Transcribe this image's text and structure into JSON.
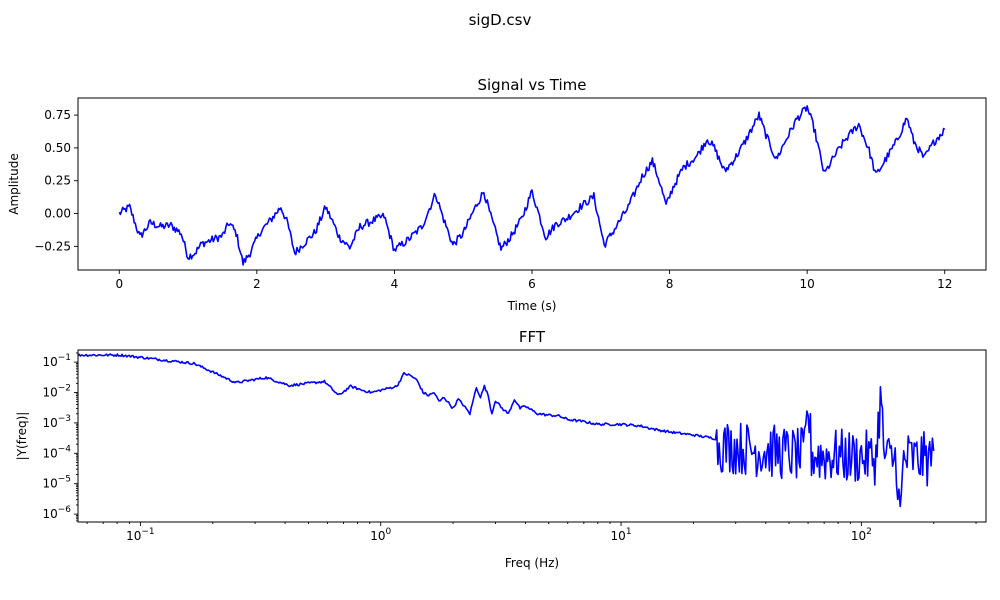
{
  "figure": {
    "suptitle": "sigD.csv"
  },
  "chart_data": [
    {
      "type": "line",
      "title": "Signal vs Time",
      "xlabel": "Time (s)",
      "ylabel": "Amplitude",
      "xscale": "linear",
      "yscale": "linear",
      "xlim": [
        -0.6,
        12.6
      ],
      "ylim": [
        -0.43,
        0.88
      ],
      "xticks": [
        0,
        2,
        4,
        6,
        8,
        10,
        12
      ],
      "xtick_labels": [
        "0",
        "2",
        "4",
        "6",
        "8",
        "10",
        "12"
      ],
      "yticks": [
        -0.25,
        0.0,
        0.25,
        0.5,
        0.75
      ],
      "ytick_labels": [
        "−0.25",
        "0.00",
        "0.25",
        "0.50",
        "0.75"
      ],
      "grid": false,
      "color": "#0000ff",
      "noise_amplitude": 0.03,
      "series": [
        {
          "x": [
            0,
            0.15,
            0.3,
            0.45,
            0.6,
            0.75,
            0.9,
            1.0,
            1.1,
            1.2,
            1.35,
            1.5,
            1.6,
            1.7,
            1.8,
            1.9,
            2.05,
            2.2,
            2.35,
            2.45,
            2.55,
            2.7,
            2.85,
            3.0,
            3.1,
            3.2,
            3.35,
            3.5,
            3.7,
            3.85,
            4.0,
            4.2,
            4.4,
            4.6,
            4.7,
            4.85,
            5.0,
            5.15,
            5.3,
            5.4,
            5.55,
            5.7,
            5.85,
            6.0,
            6.2,
            6.35,
            6.5,
            6.7,
            6.9,
            7.05,
            7.2,
            7.4,
            7.6,
            7.75,
            7.85,
            7.95,
            8.05,
            8.2,
            8.4,
            8.55,
            8.65,
            8.8,
            8.95,
            9.1,
            9.3,
            9.4,
            9.55,
            9.7,
            9.85,
            10.0,
            10.1,
            10.25,
            10.4,
            10.55,
            10.75,
            10.9,
            11.0,
            11.15,
            11.3,
            11.45,
            11.55,
            11.7,
            11.85,
            12.0
          ],
          "y": [
            0.0,
            0.05,
            -0.18,
            -0.07,
            -0.1,
            -0.09,
            -0.15,
            -0.33,
            -0.3,
            -0.23,
            -0.2,
            -0.17,
            -0.07,
            -0.15,
            -0.38,
            -0.3,
            -0.14,
            -0.05,
            0.05,
            -0.08,
            -0.3,
            -0.22,
            -0.14,
            0.05,
            -0.06,
            -0.18,
            -0.26,
            -0.1,
            -0.05,
            -0.02,
            -0.28,
            -0.2,
            -0.1,
            0.15,
            -0.02,
            -0.24,
            -0.15,
            0.02,
            0.17,
            -0.02,
            -0.27,
            -0.17,
            -0.04,
            0.17,
            -0.18,
            -0.08,
            -0.04,
            0.05,
            0.13,
            -0.24,
            -0.12,
            0.05,
            0.28,
            0.4,
            0.25,
            0.06,
            0.2,
            0.35,
            0.44,
            0.57,
            0.5,
            0.32,
            0.42,
            0.55,
            0.75,
            0.6,
            0.41,
            0.57,
            0.72,
            0.81,
            0.65,
            0.3,
            0.44,
            0.56,
            0.68,
            0.48,
            0.29,
            0.42,
            0.55,
            0.73,
            0.55,
            0.42,
            0.55,
            0.64
          ]
        }
      ]
    },
    {
      "type": "line",
      "title": "FFT",
      "xlabel": "Freq (Hz)",
      "ylabel": "|Y(freq)|",
      "xscale": "log",
      "yscale": "log",
      "xlim": [
        0.055,
        330
      ],
      "ylim": [
        5.5e-07,
        0.25
      ],
      "xticks": [
        0.1,
        1,
        10,
        100
      ],
      "xtick_labels": [
        "10",
        "10",
        "10",
        "10"
      ],
      "xtick_exponents": [
        "−1",
        "0",
        "1",
        "2"
      ],
      "yticks": [
        1e-06,
        1e-05,
        0.0001,
        0.001,
        0.01,
        0.1
      ],
      "ytick_labels": [
        "10",
        "10",
        "10",
        "10",
        "10",
        "10"
      ],
      "ytick_exponents": [
        "−6",
        "−5",
        "−4",
        "−3",
        "−2",
        "−1"
      ],
      "grid": false,
      "color": "#0000ff",
      "series": [
        {
          "x": [
            0.055,
            0.083,
            0.167,
            0.25,
            0.333,
            0.417,
            0.583,
            0.667,
            0.75,
            0.833,
            0.917,
            1.083,
            1.167,
            1.25,
            1.333,
            1.417,
            1.5,
            1.583,
            1.667,
            1.75,
            1.833,
            2.0,
            2.1,
            2.2,
            2.35,
            2.5,
            2.6,
            2.7,
            2.8,
            2.9,
            3.0,
            3.2,
            3.4,
            3.6,
            3.8,
            4.0,
            4.5,
            5.0,
            5.5,
            6.0,
            7.0,
            8.0,
            9.0,
            10.0,
            12.0,
            14.0,
            16.0,
            20.0,
            25.0,
            30.0,
            35.0,
            40.0,
            45.0,
            50.0,
            55.0,
            58.0,
            60.0,
            62.0,
            70.0,
            80.0,
            90.0,
            100.0,
            110.0,
            115.0,
            120.0,
            125.0,
            130.0,
            140.0,
            145.0,
            150.0,
            160.0,
            170.0,
            180.0,
            190.0,
            200.0
          ],
          "y": [
            0.17,
            0.17,
            0.09,
            0.021,
            0.031,
            0.017,
            0.023,
            0.008,
            0.016,
            0.012,
            0.01,
            0.014,
            0.016,
            0.042,
            0.036,
            0.025,
            0.01,
            0.008,
            0.01,
            0.005,
            0.007,
            0.003,
            0.006,
            0.004,
            0.002,
            0.015,
            0.007,
            0.016,
            0.008,
            0.002,
            0.0055,
            0.003,
            0.002,
            0.006,
            0.003,
            0.0035,
            0.002,
            0.0018,
            0.0017,
            0.0013,
            0.0011,
            0.0009,
            0.0009,
            0.0009,
            0.0008,
            0.0006,
            0.0005,
            0.0004,
            0.0003,
            0.00026,
            0.00022,
            0.0002,
            0.00018,
            0.00016,
            0.00014,
            0.00015,
            0.006,
            0.00015,
            0.00013,
            0.00014,
            0.00012,
            0.00013,
            0.00011,
            0.00012,
            0.011,
            0.00012,
            0.0001,
            0.00011,
            1e-06,
            0.0001,
            0.00012,
            0.0001,
            0.00011,
            0.0001,
            0.00012
          ],
          "noise_amplitude_decades": 0.9,
          "noise_start_hz": 25
        }
      ]
    }
  ]
}
